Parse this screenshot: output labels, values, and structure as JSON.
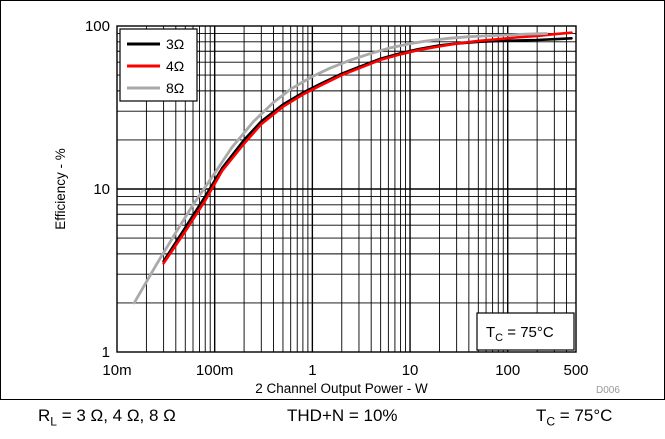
{
  "chart_data": {
    "type": "line",
    "x_scale": "log",
    "y_scale": "log",
    "xlabel": "2 Channel Output Power - W",
    "ylabel": "Efficiency - %",
    "xlim": [
      0.01,
      500
    ],
    "ylim": [
      1,
      100
    ],
    "x_ticks": [
      {
        "value": 0.01,
        "label": "10m"
      },
      {
        "value": 0.1,
        "label": "100m"
      },
      {
        "value": 1,
        "label": "1"
      },
      {
        "value": 10,
        "label": "10"
      },
      {
        "value": 100,
        "label": "100"
      },
      {
        "value": 500,
        "label": "500"
      }
    ],
    "y_ticks": [
      {
        "value": 1,
        "label": "1"
      },
      {
        "value": 10,
        "label": "10"
      },
      {
        "value": 100,
        "label": "100"
      }
    ],
    "grid": true,
    "legend_position": "top-left",
    "series": [
      {
        "name": "3Ω",
        "color": "#000000",
        "x": [
          0.03,
          0.05,
          0.08,
          0.12,
          0.2,
          0.3,
          0.5,
          0.8,
          1.2,
          2,
          3,
          5,
          8,
          12,
          20,
          30,
          50,
          80,
          120,
          200,
          300,
          450
        ],
        "y": [
          3.6,
          5.8,
          9.0,
          13.5,
          20.0,
          26.0,
          33.0,
          39.0,
          44.0,
          51.0,
          56.0,
          63.0,
          68.0,
          72.0,
          76.0,
          78.0,
          80.0,
          81.0,
          81.5,
          82.0,
          83.0,
          84.0
        ]
      },
      {
        "name": "4Ω",
        "color": "#ff0000",
        "x": [
          0.03,
          0.05,
          0.08,
          0.12,
          0.2,
          0.3,
          0.5,
          0.8,
          1.2,
          2,
          3,
          5,
          8,
          12,
          20,
          30,
          50,
          80,
          120,
          200,
          300,
          450
        ],
        "y": [
          3.5,
          5.5,
          8.5,
          13.0,
          19.0,
          25.0,
          32.0,
          38.0,
          43.0,
          50.0,
          55.0,
          62.0,
          67.0,
          71.0,
          75.0,
          78.0,
          81.0,
          83.0,
          85.0,
          87.0,
          89.0,
          91.0
        ]
      },
      {
        "name": "8Ω",
        "color": "#aaaaaa",
        "x": [
          0.015,
          0.025,
          0.04,
          0.06,
          0.1,
          0.15,
          0.25,
          0.4,
          0.6,
          1,
          1.5,
          2.5,
          4,
          6,
          10,
          15,
          25,
          40,
          60,
          100,
          150,
          250
        ],
        "y": [
          2.0,
          3.4,
          5.4,
          8.0,
          12.5,
          18.0,
          26.0,
          34.0,
          41.0,
          49.0,
          55.0,
          62.0,
          68.0,
          73.0,
          78.0,
          81.0,
          84.0,
          86.0,
          87.0,
          88.0,
          89.0,
          90.0
        ]
      }
    ],
    "annotation": {
      "text": "T",
      "sub": "C",
      "tail": " = 75°C",
      "position": "bottom-right"
    },
    "watermark": "D006"
  },
  "footer": {
    "rl": {
      "text": "R",
      "sub": "L",
      "tail": " = 3 Ω, 4 Ω, 8 Ω"
    },
    "thd": "THD+N = 10%",
    "tc": {
      "text": "T",
      "sub": "C",
      "tail": " = 75°C"
    }
  }
}
